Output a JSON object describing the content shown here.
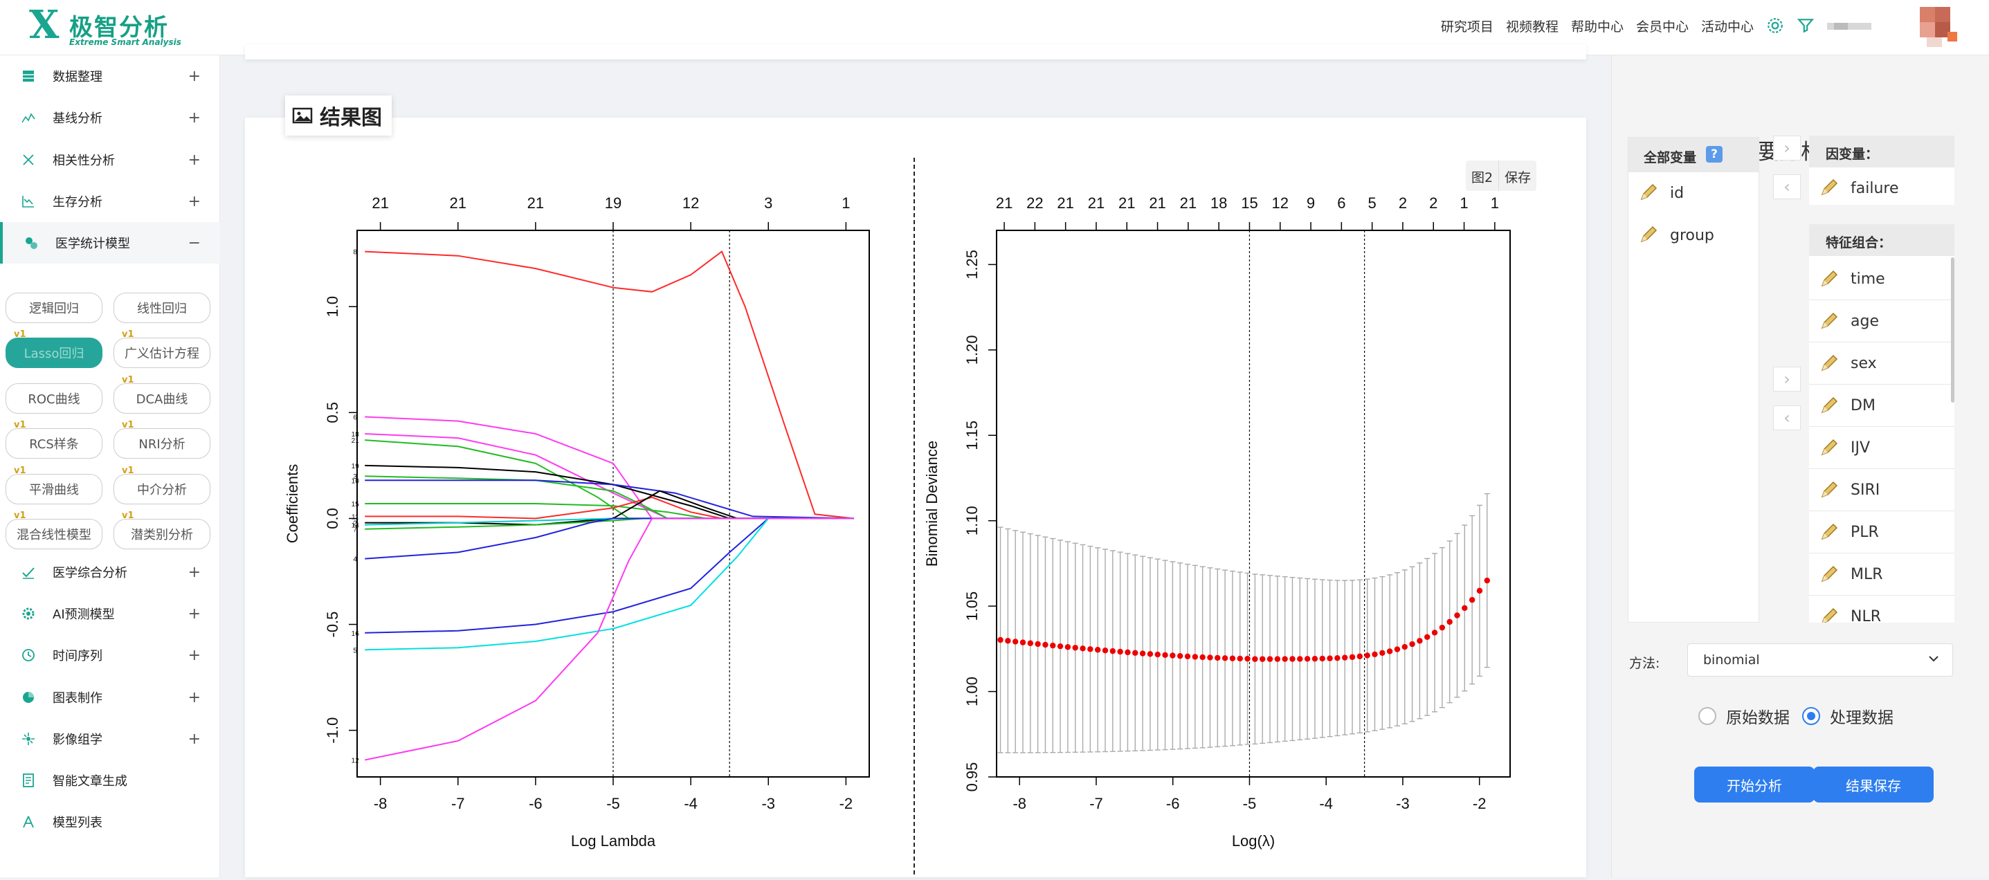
{
  "app": {
    "logo_mark": "X",
    "logo_text": "极智分析",
    "logo_sub": "Extreme Smart Analysis"
  },
  "topnav": {
    "items": [
      "研究项目",
      "视频教程",
      "帮助中心",
      "会员中心",
      "活动中心"
    ],
    "icons": [
      "gear-icon",
      "filter-icon"
    ],
    "accent": "#1aa591"
  },
  "sidebar": {
    "items": [
      {
        "label": "数据整理",
        "icon": "table-icon",
        "toggle": "+"
      },
      {
        "label": "基线分析",
        "icon": "baseline-icon",
        "toggle": "+"
      },
      {
        "label": "相关性分析",
        "icon": "correlation-icon",
        "toggle": "+"
      },
      {
        "label": "生存分析",
        "icon": "survival-icon",
        "toggle": "+"
      },
      {
        "label": "医学统计模型",
        "icon": "model-icon",
        "toggle": "−"
      },
      {
        "label": "医学综合分析",
        "icon": "check-chart-icon",
        "toggle": "+"
      },
      {
        "label": "AI预测模型",
        "icon": "ai-icon",
        "toggle": "+"
      },
      {
        "label": "时间序列",
        "icon": "clock-icon",
        "toggle": "+"
      },
      {
        "label": "图表制作",
        "icon": "pie-icon",
        "toggle": "+"
      },
      {
        "label": "影像组学",
        "icon": "radiomics-icon",
        "toggle": "+"
      },
      {
        "label": "智能文章生成",
        "icon": "article-icon",
        "toggle": ""
      },
      {
        "label": "模型列表",
        "icon": "model-list-icon",
        "toggle": ""
      }
    ],
    "sub_items": [
      {
        "label": "逻辑回归",
        "badge": ""
      },
      {
        "label": "线性回归",
        "badge": ""
      },
      {
        "label": "Lasso回归",
        "badge": "v1"
      },
      {
        "label": "广义估计方程",
        "badge": "v1"
      },
      {
        "label": "ROC曲线",
        "badge": ""
      },
      {
        "label": "DCA曲线",
        "badge": "v1"
      },
      {
        "label": "RCS样条",
        "badge": "v1"
      },
      {
        "label": "NRI分析",
        "badge": "v1"
      },
      {
        "label": "平滑曲线",
        "badge": "v1"
      },
      {
        "label": "中介分析",
        "badge": "v1"
      },
      {
        "label": "混合线性模型",
        "badge": "v1"
      },
      {
        "label": "潜类别分析",
        "badge": "v1"
      }
    ]
  },
  "result": {
    "title": "结果图",
    "tools": [
      "图2",
      "保存"
    ]
  },
  "chart_data": [
    {
      "type": "line",
      "title": "",
      "xlabel": "Log Lambda",
      "ylabel": "Coefficients",
      "xlim": [
        -8.3,
        -1.7
      ],
      "ylim": [
        -1.22,
        1.36
      ],
      "x_ticks": [
        -8,
        -7,
        -6,
        -5,
        -4,
        -3,
        -2
      ],
      "y_ticks": [
        -1.0,
        -0.5,
        0.0,
        0.5,
        1.0
      ],
      "top_ticks": [
        "21",
        "21",
        "21",
        "19",
        "12",
        "3",
        "1"
      ],
      "vlines": [
        -5.0,
        -3.5
      ],
      "series": [
        {
          "name": "8",
          "color": "#ff2a2a",
          "points": [
            [
              -8.2,
              1.26
            ],
            [
              -7,
              1.24
            ],
            [
              -6,
              1.18
            ],
            [
              -5,
              1.09
            ],
            [
              -4.5,
              1.07
            ],
            [
              -4,
              1.15
            ],
            [
              -3.6,
              1.26
            ],
            [
              -3.3,
              1.0
            ],
            [
              -2.8,
              0.45
            ],
            [
              -2.4,
              0.02
            ],
            [
              -1.9,
              0.0
            ]
          ]
        },
        {
          "name": "6",
          "color": "#ff3af0",
          "points": [
            [
              -8.2,
              0.48
            ],
            [
              -7,
              0.46
            ],
            [
              -6,
              0.4
            ],
            [
              -5,
              0.26
            ],
            [
              -4.5,
              0.0
            ],
            [
              -1.9,
              0.0
            ]
          ]
        },
        {
          "name": "18",
          "color": "#ff3af0",
          "points": [
            [
              -8.2,
              0.4
            ],
            [
              -7,
              0.38
            ],
            [
              -6,
              0.3
            ],
            [
              -5,
              0.12
            ],
            [
              -4.3,
              0.0
            ],
            [
              -1.9,
              0.0
            ]
          ]
        },
        {
          "name": "21",
          "color": "#22bb22",
          "points": [
            [
              -8.2,
              0.37
            ],
            [
              -7,
              0.34
            ],
            [
              -6,
              0.26
            ],
            [
              -5.2,
              0.1
            ],
            [
              -4.8,
              0.0
            ],
            [
              -1.9,
              0.0
            ]
          ]
        },
        {
          "name": "19",
          "color": "#000000",
          "points": [
            [
              -8.2,
              0.25
            ],
            [
              -7,
              0.24
            ],
            [
              -6,
              0.22
            ],
            [
              -5,
              0.16
            ],
            [
              -4,
              0.06
            ],
            [
              -3.5,
              0.0
            ],
            [
              -1.9,
              0.0
            ]
          ]
        },
        {
          "name": "3",
          "color": "#22bb22",
          "points": [
            [
              -8.2,
              0.2
            ],
            [
              -7,
              0.19
            ],
            [
              -6,
              0.18
            ],
            [
              -5,
              0.13
            ],
            [
              -4.6,
              0.06
            ],
            [
              -4.3,
              0.0
            ],
            [
              -1.9,
              0.0
            ]
          ]
        },
        {
          "name": "10",
          "color": "#2222dd",
          "points": [
            [
              -8.2,
              0.18
            ],
            [
              -7,
              0.18
            ],
            [
              -6,
              0.18
            ],
            [
              -5,
              0.16
            ],
            [
              -4.2,
              0.12
            ],
            [
              -3.2,
              0.01
            ],
            [
              -1.9,
              0.0
            ]
          ]
        },
        {
          "name": "15",
          "color": "#22bb22",
          "points": [
            [
              -8.2,
              0.07
            ],
            [
              -7,
              0.07
            ],
            [
              -6,
              0.07
            ],
            [
              -5,
              0.06
            ],
            [
              -4.3,
              0.03
            ],
            [
              -3.8,
              0.0
            ],
            [
              -1.9,
              0.0
            ]
          ]
        },
        {
          "name": "11",
          "color": "#ff2a2a",
          "points": [
            [
              -8.2,
              0.01
            ],
            [
              -7,
              0.01
            ],
            [
              -6,
              0.0
            ],
            [
              -5,
              0.05
            ],
            [
              -4.5,
              0.1
            ],
            [
              -4.0,
              0.03
            ],
            [
              -3.6,
              0.0
            ],
            [
              -1.9,
              0.0
            ]
          ]
        },
        {
          "name": "2",
          "color": "#000000",
          "points": [
            [
              -8.2,
              -0.02
            ],
            [
              -7,
              -0.02
            ],
            [
              -6,
              -0.03
            ],
            [
              -5,
              0.0
            ],
            [
              -4.4,
              0.13
            ],
            [
              -3.8,
              0.05
            ],
            [
              -3.4,
              0.0
            ],
            [
              -1.9,
              0.0
            ]
          ]
        },
        {
          "name": "14",
          "color": "#00d0d0",
          "points": [
            [
              -8.2,
              -0.03
            ],
            [
              -7,
              -0.02
            ],
            [
              -6,
              -0.01
            ],
            [
              -5,
              0.0
            ],
            [
              -4.7,
              0.0
            ],
            [
              -1.9,
              0.0
            ]
          ]
        },
        {
          "name": "7",
          "color": "#22bb22",
          "points": [
            [
              -8.2,
              -0.05
            ],
            [
              -7,
              -0.04
            ],
            [
              -6,
              -0.03
            ],
            [
              -5,
              -0.01
            ],
            [
              -4.6,
              0.0
            ],
            [
              -1.9,
              0.0
            ]
          ]
        },
        {
          "name": "4",
          "color": "#2222dd",
          "points": [
            [
              -8.2,
              -0.19
            ],
            [
              -7,
              -0.16
            ],
            [
              -6,
              -0.09
            ],
            [
              -5.3,
              -0.02
            ],
            [
              -5.0,
              0.0
            ],
            [
              -1.9,
              0.0
            ]
          ]
        },
        {
          "name": "16",
          "color": "#2222dd",
          "points": [
            [
              -8.2,
              -0.54
            ],
            [
              -7,
              -0.53
            ],
            [
              -6,
              -0.5
            ],
            [
              -5,
              -0.44
            ],
            [
              -4,
              -0.33
            ],
            [
              -3.5,
              -0.16
            ],
            [
              -3.0,
              0.0
            ],
            [
              -1.9,
              0.0
            ]
          ]
        },
        {
          "name": "5",
          "color": "#00e0e0",
          "points": [
            [
              -8.2,
              -0.62
            ],
            [
              -7,
              -0.61
            ],
            [
              -6,
              -0.58
            ],
            [
              -5,
              -0.52
            ],
            [
              -4,
              -0.41
            ],
            [
              -3.4,
              -0.18
            ],
            [
              -3.0,
              0.0
            ],
            [
              -1.9,
              0.0
            ]
          ]
        },
        {
          "name": "12",
          "color": "#ff3af0",
          "points": [
            [
              -8.2,
              -1.14
            ],
            [
              -7,
              -1.05
            ],
            [
              -6,
              -0.86
            ],
            [
              -5.2,
              -0.54
            ],
            [
              -4.8,
              -0.2
            ],
            [
              -4.5,
              0.0
            ],
            [
              -1.9,
              0.0
            ]
          ]
        }
      ]
    },
    {
      "type": "scatter",
      "title": "",
      "xlabel": "Log(λ)",
      "ylabel": "Binomial Deviance",
      "xlim": [
        -8.3,
        -1.6
      ],
      "ylim": [
        0.95,
        1.27
      ],
      "x_ticks": [
        -8,
        -7,
        -6,
        -5,
        -4,
        -3,
        -2
      ],
      "y_ticks": [
        0.95,
        1.0,
        1.05,
        1.1,
        1.15,
        1.2,
        1.25
      ],
      "top_ticks": [
        "21",
        "22",
        "21",
        "21",
        "21",
        "21",
        "21",
        "18",
        "15",
        "12",
        "9",
        "6",
        "5",
        "2",
        "2",
        "1",
        "1"
      ],
      "vlines": [
        -5.0,
        -3.5
      ],
      "point_color": "#ee0000",
      "errorbar_color": "#999999"
    }
  ],
  "right_panel": {
    "title": "选择要分析的列名",
    "all_vars_label": "全部变量",
    "help": "?",
    "all_vars": [
      "id",
      "group"
    ],
    "dep_label": "因变量：",
    "dep_vars": [
      "failure"
    ],
    "feat_label": "特征组合：",
    "feat_vars": [
      "time",
      "age",
      "sex",
      "DM",
      "IJV",
      "SIRI",
      "PLR",
      "MLR",
      "NLR"
    ],
    "arrow_right": "›",
    "arrow_left": "‹",
    "method_label": "方法:",
    "method_value": "binomial",
    "radio_raw": "原始数据",
    "radio_processed": "处理数据",
    "radio_selected": "处理数据",
    "start_button": "开始分析",
    "save_button": "结果保存",
    "button_color": "#2e7ef0"
  }
}
